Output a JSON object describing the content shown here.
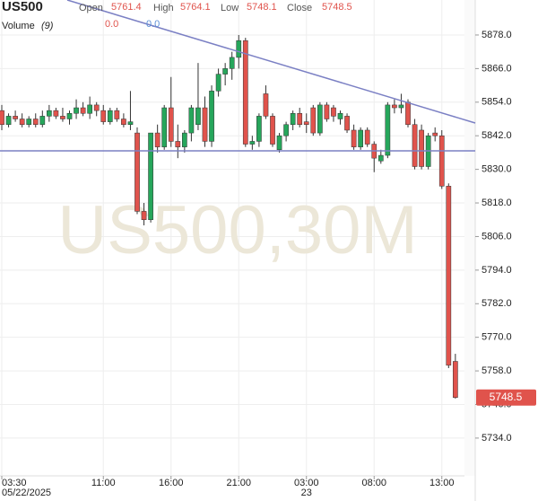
{
  "chart_data": {
    "type": "candlestick",
    "title": "US500",
    "watermark": "US500,30M",
    "legend": {
      "open": "Open",
      "high": "High",
      "low": "Low",
      "close": "Close"
    },
    "volume": {
      "label": "Volume",
      "period": "(9)",
      "values": [
        "0.0",
        "0.0"
      ],
      "colors": [
        "#e0534c",
        "#5b8fd6"
      ]
    },
    "up_color": "#26a65b",
    "down_color": "#e0534c",
    "grid": true,
    "ylim": [
      5720.5,
      5890.5
    ],
    "yticks": [
      {
        "value": 5878,
        "label": "5878.0"
      },
      {
        "value": 5866,
        "label": "5866.0"
      },
      {
        "value": 5854,
        "label": "5854.0"
      },
      {
        "value": 5842,
        "label": "5842.0"
      },
      {
        "value": 5830,
        "label": "5830.0"
      },
      {
        "value": 5818,
        "label": "5818.0"
      },
      {
        "value": 5806,
        "label": "5806.0"
      },
      {
        "value": 5794,
        "label": "5794.0"
      },
      {
        "value": 5782,
        "label": "5782.0"
      },
      {
        "value": 5770,
        "label": "5770.0"
      },
      {
        "value": 5758,
        "label": "5758.0"
      },
      {
        "value": 5746,
        "label": "5746.0"
      },
      {
        "value": 5734,
        "label": "5734.0"
      }
    ],
    "xticks": [
      {
        "value": 0,
        "label": "03:30",
        "sublabel": "05/22/2025"
      },
      {
        "value": 15,
        "label": "11:00"
      },
      {
        "value": 25,
        "label": "16:00"
      },
      {
        "value": 35,
        "label": "21:00"
      },
      {
        "value": 45,
        "label": "03:00",
        "sublabel": "23"
      },
      {
        "value": 55,
        "label": "08:00"
      },
      {
        "value": 65,
        "label": "13:00"
      }
    ],
    "open": [
      5851,
      5846,
      5849,
      5848,
      5846,
      5848,
      5846,
      5849,
      5851,
      5849,
      5848,
      5850,
      5852,
      5850,
      5853,
      5851,
      5847,
      5851,
      5848,
      5846,
      5843,
      5815,
      5812,
      5843,
      5838,
      5852,
      5840,
      5838,
      5843,
      5846,
      5852,
      5840,
      5858,
      5864,
      5866,
      5870,
      5876,
      5839,
      5840,
      5857,
      5849,
      5837,
      5842,
      5846,
      5850,
      5847,
      5852,
      5843,
      5853,
      5852,
      5848,
      5849,
      5844,
      5838,
      5844,
      5839,
      5833,
      5835,
      5853,
      5852,
      5854,
      5846,
      5844,
      5831,
      5843,
      5842,
      5824,
      5761.4
    ],
    "high": [
      5853,
      5850,
      5851,
      5850,
      5849,
      5850,
      5851,
      5853,
      5852,
      5852,
      5851,
      5855,
      5854,
      5856,
      5854,
      5853,
      5852,
      5852,
      5850,
      5858,
      5845,
      5818,
      5843,
      5846,
      5853,
      5863,
      5846,
      5844,
      5853,
      5868,
      5856,
      5860,
      5866,
      5868,
      5872,
      5878,
      5877,
      5842,
      5850,
      5860,
      5850,
      5843,
      5847,
      5851,
      5852,
      5850,
      5853,
      5854,
      5854,
      5853,
      5851,
      5850,
      5846,
      5845,
      5845,
      5840,
      5837,
      5854,
      5855,
      5857,
      5855,
      5848,
      5846,
      5843,
      5845,
      5844,
      5825,
      5764.1
    ],
    "low": [
      5844,
      5845,
      5847,
      5845,
      5845,
      5845,
      5845,
      5847,
      5848,
      5847,
      5846,
      5848,
      5849,
      5848,
      5849,
      5846,
      5846,
      5847,
      5845,
      5844,
      5814,
      5810,
      5811,
      5836,
      5837,
      5838,
      5834,
      5836,
      5840,
      5844,
      5838,
      5838,
      5856,
      5860,
      5862,
      5866,
      5838,
      5837,
      5838,
      5848,
      5838,
      5836,
      5840,
      5844,
      5845,
      5843,
      5842,
      5842,
      5847,
      5847,
      5846,
      5843,
      5837,
      5837,
      5838,
      5829,
      5832,
      5834,
      5850,
      5850,
      5845,
      5830,
      5830,
      5830,
      5840,
      5823,
      5759,
      5748.1
    ],
    "close": [
      5846,
      5849,
      5848,
      5846,
      5848,
      5846,
      5849,
      5851,
      5849,
      5848,
      5850,
      5852,
      5850,
      5853,
      5851,
      5847,
      5851,
      5848,
      5846,
      5847,
      5815,
      5812,
      5843,
      5838,
      5852,
      5840,
      5838,
      5843,
      5852,
      5852,
      5840,
      5858,
      5864,
      5866,
      5870,
      5876,
      5839,
      5840,
      5849,
      5849,
      5839,
      5842,
      5846,
      5850,
      5846,
      5846,
      5843,
      5853,
      5848,
      5849,
      5850,
      5844,
      5838,
      5844,
      5839,
      5834,
      5835,
      5853,
      5852,
      5853,
      5846,
      5831,
      5831,
      5842,
      5842,
      5824,
      5760,
      5748.5
    ]
  }
}
